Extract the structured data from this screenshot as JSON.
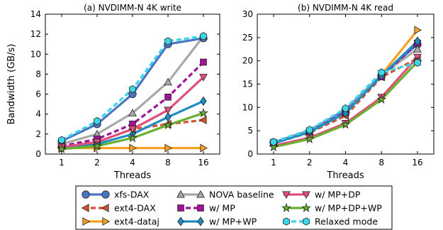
{
  "chart_data": [
    {
      "type": "line",
      "title": "(a) NVDIMM-N 4K write",
      "xlabel": "Threads",
      "ylabel": "Bandwidth (GB/s)",
      "x": [
        1,
        2,
        4,
        8,
        16
      ],
      "ylim": [
        0,
        14
      ],
      "yticks": [
        0,
        2,
        4,
        6,
        8,
        10,
        12,
        14
      ],
      "grid": false,
      "series": [
        {
          "name": "xfs-DAX",
          "values": [
            1.3,
            3.0,
            6.0,
            11.0,
            11.6
          ]
        },
        {
          "name": "ext4-DAX",
          "values": [
            0.8,
            1.2,
            2.5,
            3.0,
            3.4
          ]
        },
        {
          "name": "ext4-dataj",
          "values": [
            0.6,
            0.6,
            0.6,
            0.6,
            0.6
          ]
        },
        {
          "name": "NOVA baseline",
          "values": [
            1.0,
            2.0,
            4.1,
            7.2,
            11.8
          ]
        },
        {
          "name": "w/ MP",
          "values": [
            0.8,
            1.5,
            3.0,
            5.7,
            9.2
          ]
        },
        {
          "name": "w/ MP+WP",
          "values": [
            0.6,
            1.0,
            2.0,
            3.7,
            5.3
          ]
        },
        {
          "name": "w/ MP+DP",
          "values": [
            0.7,
            1.2,
            2.5,
            4.4,
            7.7
          ]
        },
        {
          "name": "w/ MP+DP+WP",
          "values": [
            0.5,
            0.8,
            1.6,
            2.9,
            4.1
          ]
        },
        {
          "name": "Relaxed mode",
          "values": [
            1.4,
            3.3,
            6.5,
            11.3,
            11.8
          ]
        }
      ]
    },
    {
      "type": "line",
      "title": "(b) NVDIMM-N 4K read",
      "xlabel": "Threads",
      "ylabel": "",
      "x": [
        1,
        2,
        4,
        8,
        16
      ],
      "ylim": [
        0,
        30
      ],
      "yticks": [
        0,
        5,
        10,
        15,
        20,
        25,
        30
      ],
      "grid": false,
      "series": [
        {
          "name": "xfs-DAX",
          "values": [
            2.5,
            5.0,
            9.5,
            17.0,
            23.5
          ]
        },
        {
          "name": "ext4-DAX",
          "values": [
            2.3,
            4.6,
            8.2,
            16.5,
            20.5
          ]
        },
        {
          "name": "ext4-dataj",
          "values": [
            2.4,
            4.8,
            9.0,
            17.0,
            26.6
          ]
        },
        {
          "name": "NOVA baseline",
          "values": [
            2.4,
            4.8,
            9.0,
            17.0,
            22.5
          ]
        },
        {
          "name": "w/ MP",
          "values": [
            2.4,
            4.8,
            9.0,
            16.6,
            23.8
          ]
        },
        {
          "name": "w/ MP+WP",
          "values": [
            2.3,
            4.7,
            8.8,
            16.8,
            24.2
          ]
        },
        {
          "name": "w/ MP+DP",
          "values": [
            1.8,
            3.5,
            6.6,
            12.2,
            20.8
          ]
        },
        {
          "name": "w/ MP+DP+WP",
          "values": [
            1.5,
            3.2,
            6.3,
            11.7,
            19.8
          ]
        },
        {
          "name": "Relaxed mode",
          "values": [
            2.6,
            5.2,
            9.8,
            17.5,
            19.6
          ]
        }
      ]
    }
  ],
  "legend": {
    "placement": "bottom",
    "entries": [
      {
        "name": "xfs-DAX",
        "color": "#4a74c4",
        "marker": "circle"
      },
      {
        "name": "NOVA baseline",
        "color": "#a8a8a8",
        "marker": "triangle-up"
      },
      {
        "name": "w/ MP+DP",
        "color": "#e0507a",
        "marker": "triangle-down"
      },
      {
        "name": "ext4-DAX",
        "color": "#d4532c",
        "marker": "triangle-left"
      },
      {
        "name": "w/ MP",
        "color": "#a0129a",
        "marker": "square"
      },
      {
        "name": "w/ MP+DP+WP",
        "color": "#68b030",
        "marker": "star"
      },
      {
        "name": "ext4-dataj",
        "color": "#f5a020",
        "marker": "triangle-right"
      },
      {
        "name": "w/ MP+WP",
        "color": "#1e8cc4",
        "marker": "diamond"
      },
      {
        "name": "Relaxed mode",
        "color": "#3ad6e8",
        "marker": "hexagon"
      }
    ]
  },
  "series_styles": {
    "xfs-DAX": {
      "color": "#4a74c4",
      "marker": "circle",
      "dash": "solid"
    },
    "ext4-DAX": {
      "color": "#d4532c",
      "marker": "triangle-left",
      "dash": "dashed"
    },
    "ext4-dataj": {
      "color": "#f5a020",
      "marker": "triangle-right",
      "dash": "solid"
    },
    "NOVA baseline": {
      "color": "#a8a8a8",
      "marker": "triangle-up",
      "dash": "solid"
    },
    "w/ MP": {
      "color": "#a0129a",
      "marker": "square",
      "dash": "dashed"
    },
    "w/ MP+WP": {
      "color": "#1e8cc4",
      "marker": "diamond",
      "dash": "solid"
    },
    "w/ MP+DP": {
      "color": "#e0507a",
      "marker": "triangle-down",
      "dash": "solid"
    },
    "w/ MP+DP+WP": {
      "color": "#68b030",
      "marker": "star",
      "dash": "solid"
    },
    "Relaxed mode": {
      "color": "#3ad6e8",
      "marker": "hexagon",
      "dash": "dashed"
    }
  }
}
